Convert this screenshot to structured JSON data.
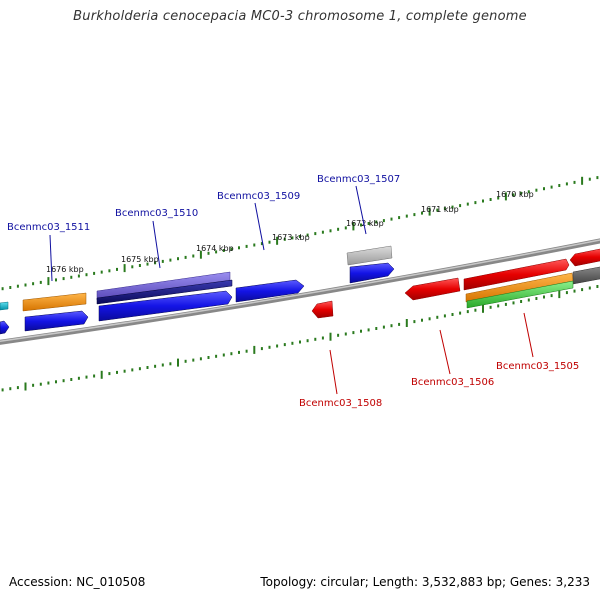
{
  "title": "Burkholderia cenocepacia MC0-3 chromosome 1, complete genome",
  "footer": {
    "accession": "Accession: NC_010508",
    "summary": "Topology: circular; Length: 3,532,883 bp; Genes: 3,233"
  },
  "kbp_labels": [
    "1676 kbp",
    "1675 kbp",
    "1674 kbp",
    "1673 kbp",
    "1672 kbp",
    "1671 kbp",
    "1670 kbp"
  ],
  "gene_labels": {
    "g1511": "Bcenmc03_1511",
    "g1510": "Bcenmc03_1510",
    "g1509": "Bcenmc03_1509",
    "g1507": "Bcenmc03_1507",
    "g1508": "Bcenmc03_1508",
    "g1506": "Bcenmc03_1506",
    "g1505": "Bcenmc03_1505"
  },
  "colors": {
    "tick": "#2a7a1e",
    "backbone": "#7a7a7a",
    "blue": "#1414e6",
    "navy": "#10107a",
    "purple": "#6a5acd",
    "orange": "#f08c00",
    "red": "#e60000",
    "gray": "#a8a8a8",
    "green": "#3ccc3c",
    "darkgray": "#606060",
    "cyan": "#00b4c8"
  }
}
